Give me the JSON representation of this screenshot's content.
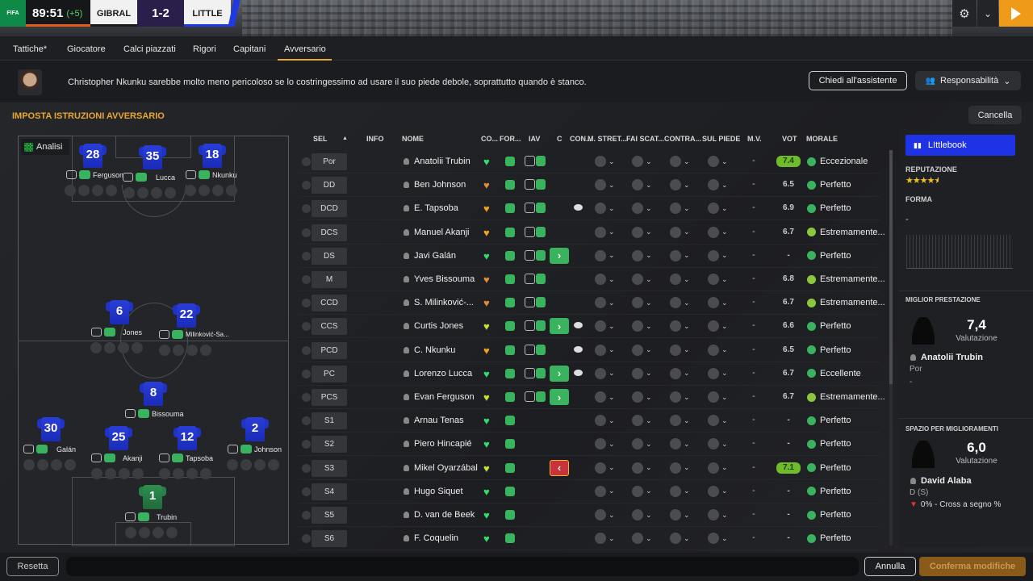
{
  "scoreboard": {
    "competition_logo": "FIFA",
    "time": "89:51",
    "added_time": "(+5)",
    "home_team": "GIBRAL",
    "score": "1-2",
    "away_team": "LITTLE",
    "away_color": "#1e3ae0"
  },
  "tabs": [
    "Tattiche*",
    "Giocatore",
    "Calci piazzati",
    "Rigori",
    "Capitani",
    "Avversario"
  ],
  "active_tab": "Avversario",
  "tip": {
    "text": "Christopher Nkunku sarebbe molto meno pericoloso se lo costringessimo ad usare il suo piede debole, soprattutto quando è stanco.",
    "ask_button": "Chiedi all'assistente",
    "responsibility_button": "Responsabilità"
  },
  "section_title": "IMPOSTA ISTRUZIONI AVVERSARIO",
  "cancel_button": "Cancella",
  "pitch": {
    "analysis_label": "Analisi",
    "players": [
      {
        "num": "28",
        "name": "Ferguson"
      },
      {
        "num": "35",
        "name": "Lucca"
      },
      {
        "num": "18",
        "name": "Nkunku"
      },
      {
        "num": "6",
        "name": "Jones"
      },
      {
        "num": "22",
        "name": "Milinković-Sa..."
      },
      {
        "num": "8",
        "name": "Bissouma"
      },
      {
        "num": "30",
        "name": "Galán"
      },
      {
        "num": "25",
        "name": "Akanji"
      },
      {
        "num": "12",
        "name": "Tapsoba"
      },
      {
        "num": "2",
        "name": "Johnson"
      },
      {
        "num": "1",
        "name": "Trubin"
      }
    ]
  },
  "table": {
    "headers": {
      "sel": "SEL",
      "info": "INFO",
      "nome": "NOME",
      "co": "CO...",
      "for": "FOR...",
      "iav": "IAV",
      "c": "C",
      "con": "CON...",
      "m_stret": "M. STRET...",
      "fai_scat": "FAI SCAT...",
      "contra": "CONTRA...",
      "sul_piede": "SUL PIEDE",
      "mv": "M.V.",
      "vot": "VOT",
      "morale": "MORALE"
    },
    "rows": [
      {
        "pos": "Por",
        "name": "Anatolii Trubin",
        "mv": "-",
        "vot": "7.4",
        "morale": "Eccezionale"
      },
      {
        "pos": "DD",
        "name": "Ben Johnson",
        "mv": "-",
        "vot": "6.5",
        "morale": "Perfetto"
      },
      {
        "pos": "DCD",
        "name": "E. Tapsoba",
        "mv": "-",
        "vot": "6.9",
        "morale": "Perfetto"
      },
      {
        "pos": "DCS",
        "name": "Manuel Akanji",
        "mv": "-",
        "vot": "6.7",
        "morale": "Estremamente..."
      },
      {
        "pos": "DS",
        "name": "Javi Galán",
        "mv": "-",
        "vot": "-",
        "morale": "Perfetto"
      },
      {
        "pos": "M",
        "name": "Yves Bissouma",
        "mv": "-",
        "vot": "6.8",
        "morale": "Estremamente..."
      },
      {
        "pos": "CCD",
        "name": "S. Milinković-...",
        "mv": "-",
        "vot": "6.7",
        "morale": "Estremamente..."
      },
      {
        "pos": "CCS",
        "name": "Curtis Jones",
        "mv": "-",
        "vot": "6.6",
        "morale": "Perfetto"
      },
      {
        "pos": "PCD",
        "name": "C. Nkunku",
        "mv": "-",
        "vot": "6.5",
        "morale": "Perfetto"
      },
      {
        "pos": "PC",
        "name": "Lorenzo Lucca",
        "mv": "-",
        "vot": "6.7",
        "morale": "Eccellente"
      },
      {
        "pos": "PCS",
        "name": "Evan Ferguson",
        "mv": "-",
        "vot": "6.7",
        "morale": "Estremamente..."
      },
      {
        "pos": "S1",
        "name": "Arnau Tenas",
        "mv": "-",
        "vot": "-",
        "morale": "Perfetto"
      },
      {
        "pos": "S2",
        "name": "Piero Hincapié",
        "mv": "-",
        "vot": "-",
        "morale": "Perfetto"
      },
      {
        "pos": "S3",
        "name": "Mikel Oyarzábal",
        "mv": "-",
        "vot": "7.1",
        "morale": "Perfetto"
      },
      {
        "pos": "S4",
        "name": "Hugo Siquet",
        "mv": "-",
        "vot": "-",
        "morale": "Perfetto"
      },
      {
        "pos": "S5",
        "name": "D. van de Beek",
        "mv": "-",
        "vot": "-",
        "morale": "Perfetto"
      },
      {
        "pos": "S6",
        "name": "F. Coquelin",
        "mv": "-",
        "vot": "-",
        "morale": "Perfetto"
      }
    ]
  },
  "sidebar": {
    "team_button": "LIttlebook",
    "reputation_label": "REPUTAZIONE",
    "reputation_stars": 4.5,
    "form_label": "FORMA",
    "form_value": "-",
    "best": {
      "label": "MIGLIOR PRESTAZIONE",
      "rating": "7,4",
      "rating_label": "Valutazione",
      "player": "Anatolii Trubin",
      "position": "Por",
      "extra": "-"
    },
    "improve": {
      "label": "SPAZIO PER MIGLIORAMENTI",
      "rating": "6,0",
      "rating_label": "Valutazione",
      "player": "David Alaba",
      "position": "D (S)",
      "stat": "0% - Cross a segno %"
    }
  },
  "footer": {
    "reset_button": "Resetta",
    "cancel_button": "Annulla",
    "confirm_button": "Conferma modifiche"
  },
  "colors": {
    "accent": "#e8a830",
    "green": "#39b35d",
    "blue": "#1f33e6"
  }
}
